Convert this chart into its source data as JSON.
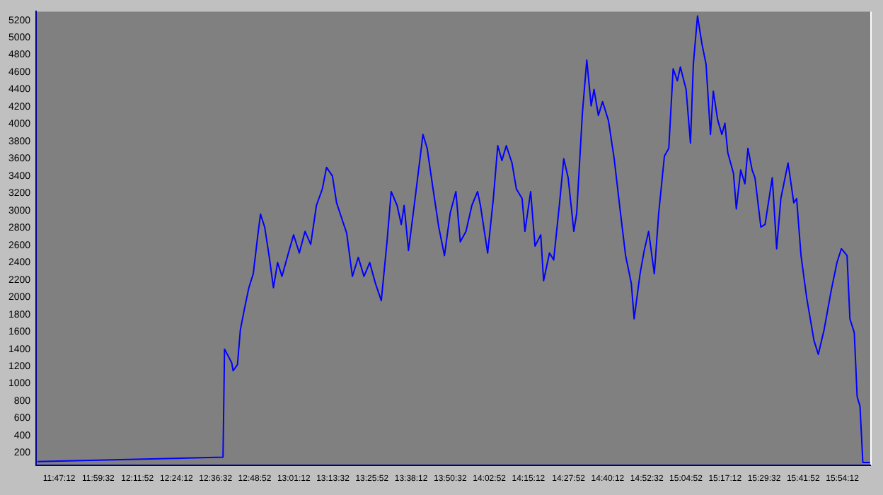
{
  "chart_data": {
    "type": "line",
    "color": "#0000ff",
    "marker": "none",
    "legend": false,
    "grid": false,
    "x": [
      11.673,
      12.648,
      12.656,
      12.694,
      12.701,
      12.724,
      12.739,
      12.762,
      12.784,
      12.807,
      12.83,
      12.845,
      12.867,
      12.89,
      12.913,
      12.935,
      12.958,
      12.988,
      13.019,
      13.049,
      13.079,
      13.109,
      13.139,
      13.17,
      13.192,
      13.223,
      13.245,
      13.275,
      13.298,
      13.328,
      13.359,
      13.389,
      13.419,
      13.449,
      13.48,
      13.51,
      13.532,
      13.563,
      13.585,
      13.6,
      13.623,
      13.653,
      13.676,
      13.699,
      13.721,
      13.752,
      13.782,
      13.812,
      13.842,
      13.872,
      13.895,
      13.925,
      13.956,
      13.986,
      14.001,
      14.039,
      14.069,
      14.092,
      14.114,
      14.137,
      14.167,
      14.19,
      14.22,
      14.235,
      14.265,
      14.288,
      14.318,
      14.333,
      14.364,
      14.386,
      14.417,
      14.439,
      14.462,
      14.492,
      14.507,
      14.537,
      14.56,
      14.583,
      14.598,
      14.621,
      14.643,
      14.674,
      14.704,
      14.734,
      14.764,
      14.794,
      14.809,
      14.84,
      14.862,
      14.885,
      14.915,
      14.938,
      14.968,
      14.991,
      15.014,
      15.036,
      15.052,
      15.082,
      15.105,
      15.12,
      15.142,
      15.165,
      15.187,
      15.21,
      15.225,
      15.248,
      15.27,
      15.286,
      15.301,
      15.331,
      15.346,
      15.369,
      15.391,
      15.407,
      15.429,
      15.444,
      15.475,
      15.497,
      15.535,
      15.558,
      15.58,
      15.618,
      15.648,
      15.663,
      15.686,
      15.716,
      15.754,
      15.777,
      15.807,
      15.845,
      15.875,
      15.898,
      15.928,
      15.943,
      15.966,
      15.981,
      15.996,
      16.011,
      16.049
    ],
    "values": [
      100,
      150,
      1400,
      1240,
      1150,
      1220,
      1620,
      1880,
      2110,
      2270,
      2700,
      2960,
      2810,
      2480,
      2110,
      2400,
      2240,
      2480,
      2720,
      2510,
      2760,
      2610,
      3060,
      3250,
      3500,
      3400,
      3090,
      2890,
      2740,
      2240,
      2460,
      2240,
      2400,
      2160,
      1960,
      2640,
      3220,
      3060,
      2840,
      3060,
      2540,
      3060,
      3470,
      3880,
      3720,
      3250,
      2810,
      2480,
      2970,
      3220,
      2640,
      2760,
      3060,
      3220,
      3060,
      2510,
      3140,
      3750,
      3580,
      3750,
      3550,
      3250,
      3140,
      2760,
      3220,
      2590,
      2720,
      2190,
      2510,
      2430,
      3090,
      3600,
      3380,
      2760,
      2970,
      4130,
      4740,
      4210,
      4400,
      4100,
      4260,
      4040,
      3600,
      3030,
      2480,
      2160,
      1750,
      2270,
      2540,
      2760,
      2270,
      2970,
      3630,
      3720,
      4640,
      4500,
      4660,
      4400,
      3780,
      4690,
      5250,
      4930,
      4690,
      3880,
      4380,
      4050,
      3880,
      4010,
      3670,
      3430,
      3020,
      3470,
      3310,
      3720,
      3470,
      3380,
      2810,
      2840,
      3380,
      2560,
      3140,
      3550,
      3090,
      3140,
      2480,
      1990,
      1500,
      1340,
      1620,
      2080,
      2400,
      2560,
      2480,
      1750,
      1590,
      850,
      740,
      90,
      90
    ],
    "xlim": [
      11.666,
      16.05
    ],
    "xticks": [
      {
        "value": 11.7867,
        "label": "11:47:12"
      },
      {
        "value": 11.9922,
        "label": "11:59:32"
      },
      {
        "value": 12.1978,
        "label": "12:11:52"
      },
      {
        "value": 12.4033,
        "label": "12:24:12"
      },
      {
        "value": 12.6089,
        "label": "12:36:32"
      },
      {
        "value": 12.8144,
        "label": "12:48:52"
      },
      {
        "value": 13.02,
        "label": "13:01:12"
      },
      {
        "value": 13.2256,
        "label": "13:13:32"
      },
      {
        "value": 13.4311,
        "label": "13:25:52"
      },
      {
        "value": 13.6367,
        "label": "13:38:12"
      },
      {
        "value": 13.8422,
        "label": "13:50:32"
      },
      {
        "value": 14.0478,
        "label": "14:02:52"
      },
      {
        "value": 14.2533,
        "label": "14:15:12"
      },
      {
        "value": 14.4644,
        "label": "14:27:52"
      },
      {
        "value": 14.67,
        "label": "14:40:12"
      },
      {
        "value": 14.8756,
        "label": "14:52:32"
      },
      {
        "value": 15.0811,
        "label": "15:04:52"
      },
      {
        "value": 15.2867,
        "label": "15:17:12"
      },
      {
        "value": 15.4922,
        "label": "15:29:32"
      },
      {
        "value": 15.6978,
        "label": "15:41:52"
      },
      {
        "value": 15.9033,
        "label": "15:54:12"
      }
    ],
    "ylim": [
      60,
      5300
    ],
    "yticks": [
      200,
      400,
      600,
      800,
      1000,
      1200,
      1400,
      1600,
      1800,
      2000,
      2200,
      2400,
      2600,
      2800,
      3000,
      3200,
      3400,
      3600,
      3800,
      4000,
      4200,
      4400,
      4600,
      4800,
      5000,
      5200
    ]
  }
}
